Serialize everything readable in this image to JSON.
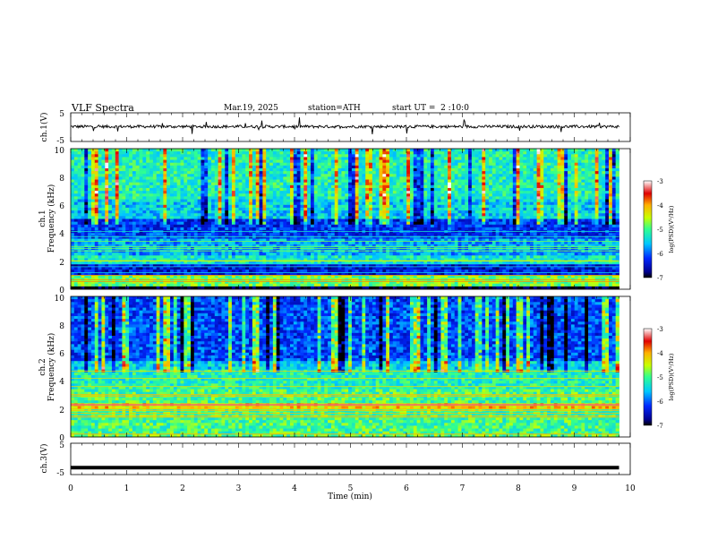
{
  "header": {
    "title": "VLF Spectra",
    "date": "Mar.19, 2025",
    "station": "station=ATH",
    "start_ut": "start UT =  2 :10:0"
  },
  "chart_data": [
    {
      "type": "line",
      "panel": "ch1-waveform",
      "ylabel": "ch.1(V)",
      "ylim": [
        -5,
        5
      ],
      "yticks": [
        "5",
        "-5"
      ],
      "x_range_min": [
        0,
        9.8
      ],
      "baseline": 0.2,
      "typical_amplitude": 0.5,
      "color": "#000000"
    },
    {
      "type": "heatmap",
      "panel": "ch1-spectrogram",
      "ylabel": "Frequency (kHz)",
      "channel_label": "ch.1",
      "ylim": [
        0,
        10
      ],
      "yticks": [
        "0",
        "2",
        "4",
        "6",
        "8",
        "10"
      ],
      "x_range_min": [
        0,
        9.8
      ],
      "colorbar": {
        "label": "log(PSD)(V²/Hz)",
        "range": [
          -7,
          -3
        ],
        "ticks": [
          "-3",
          "-4",
          "-5",
          "-6",
          "-7"
        ]
      },
      "bands": [
        {
          "f_khz": [
            0.0,
            0.3
          ],
          "level": -7.0
        },
        {
          "f_khz": [
            0.3,
            1.0
          ],
          "level": -4.8
        },
        {
          "f_khz": [
            1.0,
            1.8
          ],
          "level": -6.4
        },
        {
          "f_khz": [
            1.8,
            2.5
          ],
          "level": -5.3
        },
        {
          "f_khz": [
            2.5,
            3.6
          ],
          "level": -5.7
        },
        {
          "f_khz": [
            3.6,
            5.0
          ],
          "level": -6.2
        },
        {
          "f_khz": [
            5.0,
            6.5
          ],
          "level": -5.5
        },
        {
          "f_khz": [
            6.5,
            10.0
          ],
          "level": -5.2
        }
      ]
    },
    {
      "type": "heatmap",
      "panel": "ch2-spectrogram",
      "ylabel": "Frequency (kHz)",
      "channel_label": "ch.2",
      "ylim": [
        0,
        10
      ],
      "yticks": [
        "0",
        "2",
        "4",
        "6",
        "8",
        "10"
      ],
      "x_range_min": [
        0,
        9.8
      ],
      "colorbar": {
        "label": "log(PSD)(V²/Hz)",
        "range": [
          -7,
          -3
        ],
        "ticks": [
          "-3",
          "-4",
          "-5",
          "-6",
          "-7"
        ]
      },
      "bands": [
        {
          "f_khz": [
            0.0,
            0.3
          ],
          "level": -4.9
        },
        {
          "f_khz": [
            0.3,
            2.0
          ],
          "level": -5.0
        },
        {
          "f_khz": [
            2.0,
            2.4
          ],
          "level": -4.2
        },
        {
          "f_khz": [
            2.4,
            3.4
          ],
          "level": -5.0
        },
        {
          "f_khz": [
            3.4,
            4.7
          ],
          "level": -5.2
        },
        {
          "f_khz": [
            4.7,
            5.5
          ],
          "level": -5.5
        },
        {
          "f_khz": [
            5.5,
            10.0
          ],
          "level": -6.1
        }
      ]
    },
    {
      "type": "line",
      "panel": "ch3-waveform",
      "ylabel": "ch.3(V)",
      "ylim": [
        -5,
        5
      ],
      "yticks": [
        "5",
        "-5"
      ],
      "x_range_min": [
        0,
        9.8
      ],
      "baseline": -2.8,
      "typical_amplitude": 0.0,
      "color": "#000000"
    }
  ],
  "xaxis": {
    "label": "Time (min)",
    "ticks": [
      "0",
      "1",
      "2",
      "3",
      "4",
      "5",
      "6",
      "7",
      "8",
      "9",
      "10"
    ],
    "range": [
      0,
      10
    ]
  }
}
